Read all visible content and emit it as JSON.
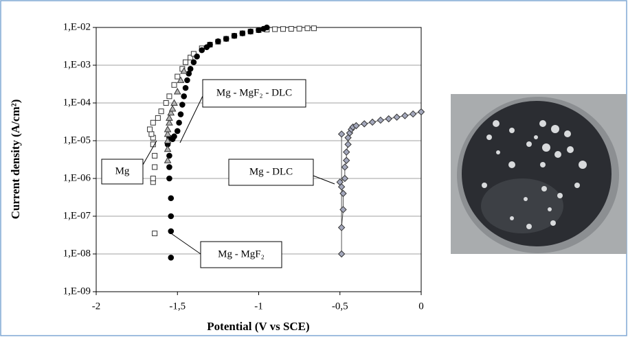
{
  "chart_data": {
    "type": "scatter",
    "x_label": "Potential (V vs SCE)",
    "y_label": "Current density (A/cm²)",
    "xlim": [
      -2,
      0
    ],
    "ylim": [
      1e-09,
      0.01
    ],
    "yscale": "log",
    "grid": true,
    "xticks": [
      -2,
      {
        "value": -1.5,
        "label": "-1,5"
      },
      -1,
      {
        "value": -0.5,
        "label": "-0,5"
      },
      0
    ],
    "yticks": [
      {
        "value": 1e-09,
        "label": "1,E-09"
      },
      {
        "value": 1e-08,
        "label": "1,E-08"
      },
      {
        "value": 1e-07,
        "label": "1,E-07"
      },
      {
        "value": 1e-06,
        "label": "1,E-06"
      },
      {
        "value": 1e-05,
        "label": "1,E-05"
      },
      {
        "value": 0.0001,
        "label": "1,E-04"
      },
      {
        "value": 0.001,
        "label": "1,E-03"
      },
      {
        "value": 0.01,
        "label": "1,E-02"
      }
    ],
    "series": [
      {
        "name": "Mg",
        "marker": "square",
        "color": "#ffffff",
        "connect": false,
        "x": [
          -1.64,
          -1.65,
          -1.65,
          -1.64,
          -1.64,
          -1.65,
          -1.65,
          -1.66,
          -1.67,
          -1.65,
          -1.62,
          -1.6,
          -1.57,
          -1.55,
          -1.52,
          -1.5,
          -1.47,
          -1.45,
          -1.42,
          -1.4,
          -1.35,
          -1.3,
          -1.25,
          -1.2,
          -1.15,
          -1.1,
          -1.05,
          -1.0,
          -0.95,
          -0.9,
          -0.85,
          -0.8,
          -0.75,
          -0.7,
          -0.66
        ],
        "values": [
          3.5e-08,
          8e-07,
          1e-06,
          2e-06,
          4e-06,
          8e-06,
          1.2e-05,
          1.5e-05,
          2e-05,
          3e-05,
          4e-05,
          6e-05,
          0.0001,
          0.00015,
          0.0003,
          0.0005,
          0.0008,
          0.0012,
          0.0016,
          0.002,
          0.0028,
          0.0035,
          0.0042,
          0.005,
          0.006,
          0.007,
          0.0078,
          0.0085,
          0.0088,
          0.009,
          0.0091,
          0.0092,
          0.0093,
          0.0095,
          0.0095
        ]
      },
      {
        "name": "Mg - MgF₂",
        "marker": "circle",
        "color": "#000000",
        "connect": false,
        "x": [
          -1.54,
          -1.54,
          -1.54,
          -1.54,
          -1.55,
          -1.55,
          -1.55,
          -1.56,
          -1.55,
          -1.53,
          -1.52,
          -1.5,
          -1.49,
          -1.48,
          -1.47,
          -1.46,
          -1.45,
          -1.44,
          -1.43,
          -1.42,
          -1.4,
          -1.38,
          -1.35,
          -1.32,
          -1.3,
          -1.25,
          -1.2,
          -1.15,
          -1.1,
          -1.05,
          -1.0,
          -0.97,
          -0.95
        ],
        "values": [
          8e-09,
          4e-08,
          1e-07,
          3e-07,
          1e-06,
          2e-06,
          4e-06,
          8e-06,
          1.2e-05,
          1.1e-05,
          1.3e-05,
          1.8e-05,
          3e-05,
          5e-05,
          9e-05,
          0.00015,
          0.00025,
          0.0004,
          0.0006,
          0.0008,
          0.0012,
          0.0017,
          0.0025,
          0.003,
          0.0035,
          0.0043,
          0.005,
          0.006,
          0.007,
          0.0078,
          0.0085,
          0.0092,
          0.01
        ]
      },
      {
        "name": "Mg - MgF₂ - DLC",
        "marker": "triangle",
        "color": "#b4b4b4",
        "connect": false,
        "x": [
          -1.56,
          -1.56,
          -1.56,
          -1.56,
          -1.56,
          -1.55,
          -1.55,
          -1.54,
          -1.53,
          -1.52,
          -1.5,
          -1.48,
          -1.46
        ],
        "values": [
          3e-06,
          6e-06,
          1e-05,
          1.5e-05,
          2e-05,
          3e-05,
          4e-05,
          5.5e-05,
          7e-05,
          0.0001,
          0.0002,
          0.0004,
          0.0007
        ]
      },
      {
        "name": "Mg - DLC",
        "marker": "diamond",
        "color": "#a4a8bc",
        "connect": true,
        "x": [
          -0.49,
          -0.49,
          -0.49,
          -0.48,
          -0.48,
          -0.49,
          -0.5,
          -0.47,
          -0.47,
          -0.46,
          -0.46,
          -0.45,
          -0.45,
          -0.44,
          -0.43,
          -0.42,
          -0.4,
          -0.35,
          -0.3,
          -0.25,
          -0.2,
          -0.15,
          -0.1,
          -0.05,
          0.0
        ],
        "values": [
          1.5e-05,
          1e-08,
          5e-08,
          1.5e-07,
          4e-07,
          6e-07,
          8e-07,
          1e-06,
          2e-06,
          3e-06,
          5e-06,
          8e-06,
          1.2e-05,
          1.6e-05,
          2e-05,
          2.3e-05,
          2.5e-05,
          2.8e-05,
          3.1e-05,
          3.5e-05,
          3.8e-05,
          4.2e-05,
          4.6e-05,
          5.1e-05,
          5.8e-05
        ]
      }
    ]
  }
}
